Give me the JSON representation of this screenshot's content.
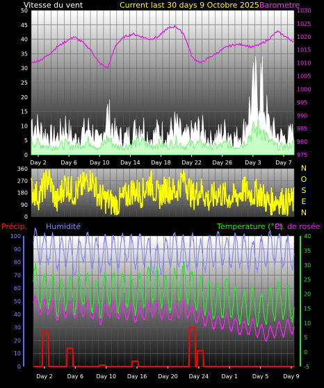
{
  "header": {
    "left_title": "Vitesse du vent",
    "center_title": "Current last 30 days 9 Octobre 2025",
    "right_title": "Barometre"
  },
  "wind_panel": {
    "left_ticks": [
      "50",
      "45",
      "40",
      "35",
      "30",
      "25",
      "20",
      "15",
      "10",
      "5",
      "0"
    ],
    "right_ticks": [
      "1030",
      "1025",
      "1020",
      "1015",
      "1010",
      "1005",
      "1000",
      "995",
      "990",
      "985",
      "980",
      "975"
    ],
    "x_labels": [
      "Day 2",
      "Day 6",
      "Day 10",
      "Day 14",
      "Day 18",
      "Day 22",
      "Day 26",
      "Day 3",
      "Day 7"
    ]
  },
  "direction_panel": {
    "left_ticks": [
      "360",
      "270",
      "180",
      "90",
      "0"
    ],
    "compass": [
      "N",
      "O",
      "S",
      "E",
      "N"
    ]
  },
  "lower_header": {
    "precip": "Précip.",
    "humidity": "Humidité",
    "temperature": "Temperature (°C)",
    "dewpoint": "Pt. de rosée"
  },
  "lower_panel": {
    "left_ticks": [
      "100",
      "90",
      "80",
      "70",
      "60",
      "50",
      "40",
      "30",
      "20",
      "10",
      "0"
    ],
    "right_ticks": [
      "40",
      "35",
      "30",
      "25",
      "20",
      "15",
      "10",
      "5",
      "0",
      "-5"
    ],
    "x_labels": [
      "Day 2",
      "Day 6",
      "Day 10",
      "Day 16",
      "Day 20",
      "Day 24",
      "Day 1",
      "Day 5",
      "Day 9"
    ]
  },
  "chart_data": [
    {
      "type": "line",
      "x_labels": [
        "Day 2",
        "Day 6",
        "Day 10",
        "Day 14",
        "Day 18",
        "Day 22",
        "Day 26",
        "Day 3",
        "Day 7"
      ],
      "left_axis": {
        "label": "Vitesse du vent",
        "range": [
          0,
          50
        ]
      },
      "right_axis": {
        "label": "Barometre",
        "range": [
          975,
          1030
        ]
      },
      "series": [
        {
          "name": "Barometre",
          "axis": "right",
          "color": "#dd22dd",
          "values": [
            1010,
            1011,
            1013,
            1016,
            1018,
            1020,
            1018,
            1015,
            1010,
            1008,
            1017,
            1020,
            1021,
            1020,
            1019,
            1020,
            1023,
            1024,
            1021,
            1012,
            1010,
            1012,
            1014,
            1016,
            1017,
            1017,
            1016,
            1017,
            1019,
            1022,
            1020,
            1018
          ]
        },
        {
          "name": "Vitesse du vent",
          "axis": "left",
          "color": "#ffffff",
          "values": [
            14,
            10,
            8,
            7,
            12,
            6,
            9,
            11,
            5,
            16,
            8,
            7,
            9,
            13,
            6,
            10,
            8,
            12,
            7,
            9,
            11,
            6,
            8,
            10,
            7,
            9,
            22,
            30,
            12,
            8,
            7,
            9
          ]
        },
        {
          "name": "",
          "axis": "left",
          "color": "#9fff9f",
          "values": [
            5,
            4,
            3,
            3,
            4,
            3,
            4,
            5,
            2,
            6,
            3,
            3,
            4,
            5,
            3,
            4,
            3,
            5,
            3,
            4,
            4,
            3,
            3,
            4,
            3,
            4,
            8,
            10,
            5,
            3,
            3,
            4
          ]
        }
      ]
    },
    {
      "type": "line",
      "left_axis": {
        "range": [
          0,
          360
        ]
      },
      "right_labels": [
        "N",
        "O",
        "S",
        "E",
        "N"
      ],
      "series": [
        {
          "name": "",
          "color": "#ffff00",
          "values": [
            200,
            150,
            300,
            100,
            250,
            180,
            220,
            300,
            150,
            120,
            90,
            140,
            200,
            170,
            260,
            150,
            220,
            180,
            300,
            150,
            200,
            120,
            180,
            150,
            140,
            200,
            170,
            180,
            100,
            130,
            110,
            115
          ]
        }
      ]
    },
    {
      "type": "line",
      "x_labels": [
        "Day 2",
        "Day 6",
        "Day 10",
        "Day 16",
        "Day 20",
        "Day 24",
        "Day 1",
        "Day 5",
        "Day 9"
      ],
      "left_axis": {
        "range": [
          0,
          100
        ]
      },
      "right_axis": {
        "range": [
          -5,
          40
        ]
      },
      "series": [
        {
          "name": "Humidité",
          "axis": "left",
          "color": "#8888ff",
          "values": [
            95,
            88,
            92,
            85,
            90,
            80,
            92,
            88,
            84,
            90,
            86,
            92,
            88,
            90,
            85,
            80,
            88,
            92,
            86,
            90,
            84,
            88,
            92,
            86,
            90,
            88,
            84,
            86,
            92,
            90,
            88,
            86
          ]
        },
        {
          "name": "Temperature (°C)",
          "axis": "right",
          "color": "#22ee22",
          "values": [
            25,
            20,
            22,
            18,
            21,
            19,
            22,
            20,
            18,
            23,
            20,
            22,
            19,
            21,
            24,
            22,
            19,
            23,
            25,
            21,
            20,
            18,
            17,
            19,
            16,
            15,
            17,
            14,
            16,
            18,
            17,
            16
          ]
        },
        {
          "name": "Pt. de rosée",
          "axis": "right",
          "color": "#ee22ee",
          "values": [
            17,
            15,
            16,
            13,
            15,
            14,
            15,
            14,
            12,
            15,
            14,
            14,
            13,
            13,
            15,
            14,
            13,
            14,
            15,
            13,
            12,
            11,
            10,
            11,
            9,
            8,
            9,
            7,
            6,
            8,
            8,
            9
          ]
        },
        {
          "name": "Précip.",
          "axis": "left",
          "color": "#ff0000",
          "values": [
            0,
            27,
            0,
            0,
            14,
            0,
            0,
            0,
            1,
            0,
            0,
            0,
            4,
            0,
            0,
            0,
            0,
            0,
            0,
            30,
            12,
            0,
            0,
            0,
            0,
            0,
            0,
            0,
            0,
            0,
            0,
            0
          ]
        }
      ]
    }
  ]
}
